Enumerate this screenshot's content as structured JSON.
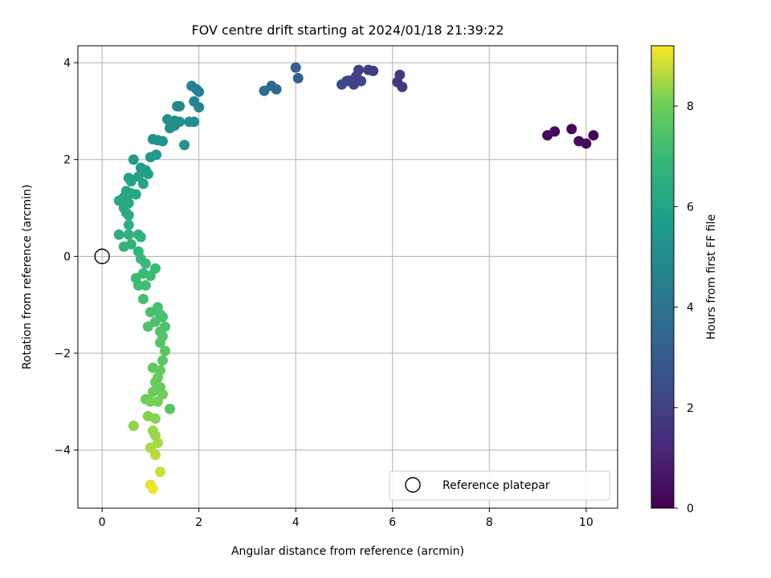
{
  "chart_data": {
    "type": "scatter",
    "title": "FOV centre drift starting at 2024/01/18 21:39:22",
    "xlabel": "Angular distance from reference (arcmin)",
    "ylabel": "Rotation from reference (arcmin)",
    "xlim": [
      -0.5,
      10.65
    ],
    "ylim": [
      -5.2,
      4.35
    ],
    "xticks": [
      0,
      2,
      4,
      6,
      8,
      10
    ],
    "yticks": [
      -4,
      -2,
      0,
      2,
      4
    ],
    "xtick_labels": [
      "0",
      "2",
      "4",
      "6",
      "8",
      "10"
    ],
    "ytick_labels": [
      "−4",
      "−2",
      "0",
      "2",
      "4"
    ],
    "grid": true,
    "colormap": "viridis",
    "colorbar": {
      "label": "Hours from first FF file",
      "min": 0,
      "max": 9.2,
      "ticks": [
        0,
        2,
        4,
        6,
        8
      ],
      "tick_labels": [
        "0",
        "2",
        "4",
        "6",
        "8"
      ]
    },
    "legend": {
      "position": "bottom-right",
      "entries": [
        {
          "label": "Reference platepar",
          "marker": "open-circle"
        }
      ]
    },
    "reference_point": {
      "x": 0,
      "y": 0
    },
    "points": [
      {
        "x": 9.2,
        "y": 2.5,
        "c": 0.2
      },
      {
        "x": 9.35,
        "y": 2.58,
        "c": 0.3
      },
      {
        "x": 9.7,
        "y": 2.63,
        "c": 0.25
      },
      {
        "x": 9.85,
        "y": 2.38,
        "c": 0.35
      },
      {
        "x": 10.0,
        "y": 2.33,
        "c": 0.3
      },
      {
        "x": 10.15,
        "y": 2.5,
        "c": 0.2
      },
      {
        "x": 5.2,
        "y": 3.55,
        "c": 2.0
      },
      {
        "x": 5.3,
        "y": 3.85,
        "c": 2.05
      },
      {
        "x": 5.5,
        "y": 3.85,
        "c": 1.9
      },
      {
        "x": 5.6,
        "y": 3.83,
        "c": 1.95
      },
      {
        "x": 6.1,
        "y": 3.6,
        "c": 1.8
      },
      {
        "x": 6.15,
        "y": 3.75,
        "c": 1.75
      },
      {
        "x": 6.2,
        "y": 3.5,
        "c": 1.7
      },
      {
        "x": 4.95,
        "y": 3.55,
        "c": 2.3
      },
      {
        "x": 5.05,
        "y": 3.62,
        "c": 2.25
      },
      {
        "x": 5.1,
        "y": 3.63,
        "c": 2.2
      },
      {
        "x": 5.25,
        "y": 3.72,
        "c": 2.15
      },
      {
        "x": 5.35,
        "y": 3.62,
        "c": 2.1
      },
      {
        "x": 3.35,
        "y": 3.42,
        "c": 3.6
      },
      {
        "x": 3.5,
        "y": 3.52,
        "c": 3.5
      },
      {
        "x": 3.6,
        "y": 3.45,
        "c": 3.45
      },
      {
        "x": 4.0,
        "y": 3.9,
        "c": 3.2
      },
      {
        "x": 4.05,
        "y": 3.68,
        "c": 3.1
      },
      {
        "x": 1.85,
        "y": 3.52,
        "c": 4.6
      },
      {
        "x": 1.95,
        "y": 3.45,
        "c": 4.55
      },
      {
        "x": 2.0,
        "y": 3.4,
        "c": 4.5
      },
      {
        "x": 1.9,
        "y": 3.2,
        "c": 4.7
      },
      {
        "x": 2.0,
        "y": 3.08,
        "c": 4.75
      },
      {
        "x": 1.55,
        "y": 3.1,
        "c": 4.9
      },
      {
        "x": 1.6,
        "y": 3.1,
        "c": 4.85
      },
      {
        "x": 1.9,
        "y": 2.78,
        "c": 4.95
      },
      {
        "x": 1.8,
        "y": 2.78,
        "c": 5.0
      },
      {
        "x": 1.5,
        "y": 2.8,
        "c": 5.05
      },
      {
        "x": 1.35,
        "y": 2.83,
        "c": 5.1
      },
      {
        "x": 1.4,
        "y": 2.65,
        "c": 5.1
      },
      {
        "x": 1.5,
        "y": 2.7,
        "c": 5.15
      },
      {
        "x": 1.6,
        "y": 2.78,
        "c": 5.15
      },
      {
        "x": 1.7,
        "y": 2.3,
        "c": 5.4
      },
      {
        "x": 1.05,
        "y": 2.42,
        "c": 5.3
      },
      {
        "x": 1.15,
        "y": 2.4,
        "c": 5.35
      },
      {
        "x": 1.25,
        "y": 2.38,
        "c": 5.4
      },
      {
        "x": 1.0,
        "y": 2.05,
        "c": 5.5
      },
      {
        "x": 1.12,
        "y": 2.1,
        "c": 5.55
      },
      {
        "x": 0.65,
        "y": 2.0,
        "c": 5.7
      },
      {
        "x": 0.8,
        "y": 1.83,
        "c": 5.8
      },
      {
        "x": 0.9,
        "y": 1.78,
        "c": 5.8
      },
      {
        "x": 0.95,
        "y": 1.7,
        "c": 5.85
      },
      {
        "x": 0.75,
        "y": 1.65,
        "c": 5.9
      },
      {
        "x": 0.55,
        "y": 1.62,
        "c": 5.95
      },
      {
        "x": 0.6,
        "y": 1.55,
        "c": 6.0
      },
      {
        "x": 0.85,
        "y": 1.5,
        "c": 6.0
      },
      {
        "x": 0.5,
        "y": 1.35,
        "c": 6.05
      },
      {
        "x": 0.6,
        "y": 1.3,
        "c": 6.1
      },
      {
        "x": 0.7,
        "y": 1.28,
        "c": 6.1
      },
      {
        "x": 0.35,
        "y": 1.15,
        "c": 6.2
      },
      {
        "x": 0.45,
        "y": 1.22,
        "c": 6.15
      },
      {
        "x": 0.55,
        "y": 1.1,
        "c": 6.2
      },
      {
        "x": 0.45,
        "y": 1.0,
        "c": 6.3
      },
      {
        "x": 0.5,
        "y": 0.9,
        "c": 6.3
      },
      {
        "x": 0.55,
        "y": 0.85,
        "c": 6.35
      },
      {
        "x": 0.55,
        "y": 0.65,
        "c": 6.5
      },
      {
        "x": 0.35,
        "y": 0.45,
        "c": 6.55
      },
      {
        "x": 0.55,
        "y": 0.45,
        "c": 6.6
      },
      {
        "x": 0.75,
        "y": 0.45,
        "c": 6.6
      },
      {
        "x": 0.8,
        "y": 0.4,
        "c": 6.65
      },
      {
        "x": 0.45,
        "y": 0.2,
        "c": 6.7
      },
      {
        "x": 0.6,
        "y": 0.25,
        "c": 6.7
      },
      {
        "x": 0.75,
        "y": 0.1,
        "c": 6.8
      },
      {
        "x": 0.8,
        "y": -0.05,
        "c": 6.9
      },
      {
        "x": 0.9,
        "y": -0.15,
        "c": 6.95
      },
      {
        "x": 1.1,
        "y": -0.25,
        "c": 7.0
      },
      {
        "x": 0.85,
        "y": -0.35,
        "c": 7.0
      },
      {
        "x": 1.0,
        "y": -0.4,
        "c": 7.05
      },
      {
        "x": 0.7,
        "y": -0.45,
        "c": 7.05
      },
      {
        "x": 0.75,
        "y": -0.6,
        "c": 7.1
      },
      {
        "x": 0.9,
        "y": -0.6,
        "c": 7.1
      },
      {
        "x": 0.85,
        "y": -0.88,
        "c": 7.2
      },
      {
        "x": 1.15,
        "y": -1.05,
        "c": 7.3
      },
      {
        "x": 1.0,
        "y": -1.15,
        "c": 7.3
      },
      {
        "x": 1.2,
        "y": -1.2,
        "c": 7.35
      },
      {
        "x": 1.25,
        "y": -1.25,
        "c": 7.35
      },
      {
        "x": 1.1,
        "y": -1.35,
        "c": 7.4
      },
      {
        "x": 1.3,
        "y": -1.45,
        "c": 7.4
      },
      {
        "x": 0.95,
        "y": -1.45,
        "c": 7.45
      },
      {
        "x": 1.2,
        "y": -1.55,
        "c": 7.5
      },
      {
        "x": 1.25,
        "y": -1.65,
        "c": 7.5
      },
      {
        "x": 1.2,
        "y": -1.78,
        "c": 7.55
      },
      {
        "x": 1.3,
        "y": -1.95,
        "c": 7.6
      },
      {
        "x": 1.25,
        "y": -2.15,
        "c": 7.7
      },
      {
        "x": 1.05,
        "y": -2.3,
        "c": 7.75
      },
      {
        "x": 1.2,
        "y": -2.35,
        "c": 7.8
      },
      {
        "x": 1.15,
        "y": -2.5,
        "c": 7.85
      },
      {
        "x": 1.1,
        "y": -2.6,
        "c": 7.9
      },
      {
        "x": 1.2,
        "y": -2.7,
        "c": 7.9
      },
      {
        "x": 1.05,
        "y": -2.8,
        "c": 7.95
      },
      {
        "x": 1.25,
        "y": -2.85,
        "c": 8.0
      },
      {
        "x": 0.9,
        "y": -2.95,
        "c": 8.05
      },
      {
        "x": 1.0,
        "y": -3.0,
        "c": 8.1
      },
      {
        "x": 1.15,
        "y": -3.0,
        "c": 8.1
      },
      {
        "x": 1.4,
        "y": -3.15,
        "c": 7.6
      },
      {
        "x": 0.95,
        "y": -3.3,
        "c": 8.2
      },
      {
        "x": 1.1,
        "y": -3.35,
        "c": 8.25
      },
      {
        "x": 0.65,
        "y": -3.5,
        "c": 8.3
      },
      {
        "x": 1.05,
        "y": -3.6,
        "c": 8.35
      },
      {
        "x": 1.1,
        "y": -3.7,
        "c": 8.4
      },
      {
        "x": 1.15,
        "y": -3.85,
        "c": 8.5
      },
      {
        "x": 1.0,
        "y": -3.95,
        "c": 8.55
      },
      {
        "x": 1.1,
        "y": -4.1,
        "c": 8.65
      },
      {
        "x": 1.2,
        "y": -4.45,
        "c": 8.8
      },
      {
        "x": 1.0,
        "y": -4.72,
        "c": 9.0
      },
      {
        "x": 1.05,
        "y": -4.8,
        "c": 9.1
      }
    ]
  }
}
